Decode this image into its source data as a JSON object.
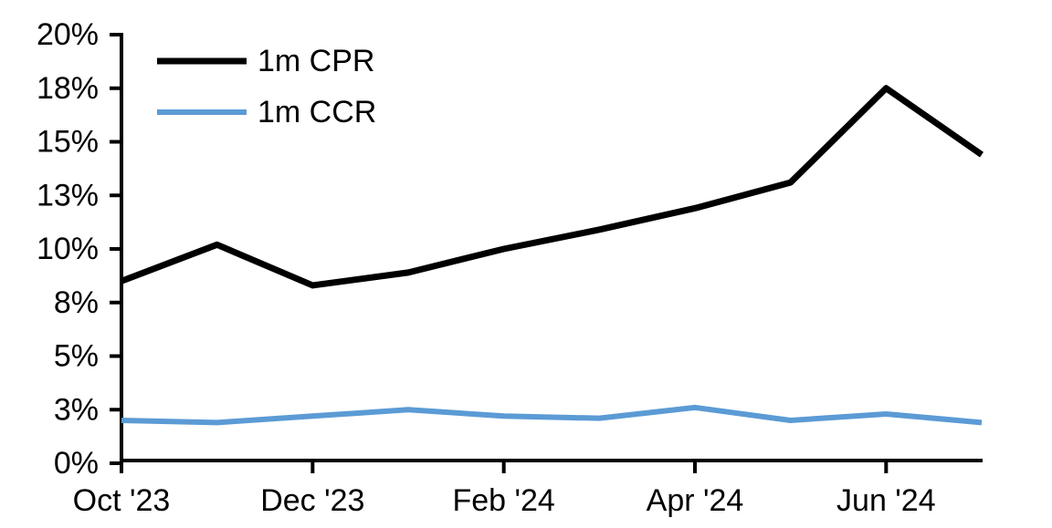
{
  "chart_data": {
    "type": "line",
    "title": "",
    "xlabel": "",
    "ylabel": "",
    "x": [
      "Oct '23",
      "Nov '23",
      "Dec '23",
      "Jan '24",
      "Feb '24",
      "Mar '24",
      "Apr '24",
      "May '24",
      "Jun '24",
      "Jul '24"
    ],
    "x_tick_indices": [
      0,
      2,
      4,
      6,
      8
    ],
    "x_tick_labels": [
      "Oct '23",
      "Dec '23",
      "Feb '24",
      "Apr '24",
      "Jun '24"
    ],
    "series": [
      {
        "name": "1m CPR",
        "color": "#000000",
        "stroke_width": 7,
        "values": [
          8.5,
          10.2,
          8.3,
          8.9,
          10.0,
          10.9,
          11.9,
          13.1,
          17.5,
          14.4
        ]
      },
      {
        "name": "1m CCR",
        "color": "#5B9BD5",
        "stroke_width": 6,
        "values": [
          2.0,
          1.9,
          2.2,
          2.5,
          2.2,
          2.1,
          2.6,
          2.0,
          2.3,
          1.9
        ]
      }
    ],
    "y_axis": {
      "min": 0,
      "max": 20,
      "tick_values": [
        0,
        2.5,
        5,
        7.5,
        10,
        12.5,
        15,
        17.5,
        20
      ],
      "tick_labels": [
        "0%",
        "3%",
        "5%",
        "8%",
        "10%",
        "13%",
        "15%",
        "18%",
        "20%"
      ]
    },
    "legend_position": "top-left",
    "grid": false
  },
  "colors": {
    "background": "#ffffff",
    "axis": "#000000",
    "text": "#000000",
    "series_cpr": "#000000",
    "series_ccr": "#5B9BD5"
  }
}
